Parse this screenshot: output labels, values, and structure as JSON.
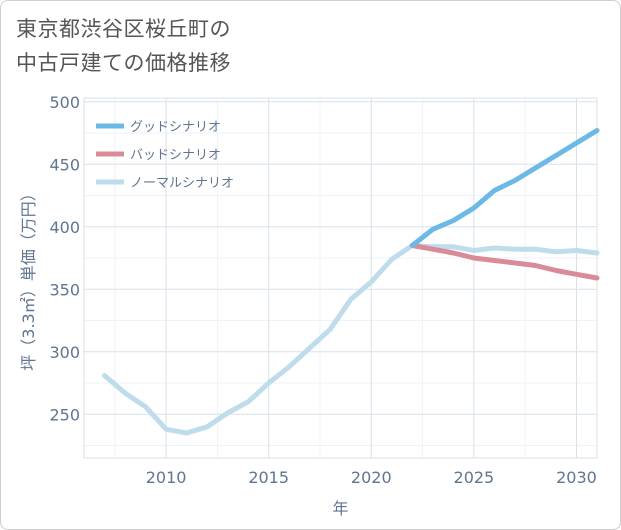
{
  "title": {
    "line1": "東京都渋谷区桜丘町の",
    "line2": "中古戸建ての価格推移"
  },
  "chart_data": {
    "type": "line",
    "xlabel": "年",
    "ylabel": "坪（3.3㎡）単価（万円）",
    "xlim": [
      2006,
      2031
    ],
    "ylim": [
      215,
      503
    ],
    "x_ticks": [
      "2010",
      "2015",
      "2020",
      "2025",
      "2030"
    ],
    "y_ticks": [
      "250",
      "300",
      "350",
      "400",
      "450",
      "500"
    ],
    "legend_position": "top-left",
    "series": [
      {
        "name": "グッドシナリオ",
        "color": "#6cb8e6",
        "x": [
          2022,
          2023,
          2024,
          2025,
          2026,
          2027,
          2028,
          2029,
          2030,
          2031
        ],
        "values": [
          385,
          398,
          405,
          415,
          429,
          437,
          447,
          457,
          467,
          477
        ]
      },
      {
        "name": "バッドシナリオ",
        "color": "#d98c97",
        "x": [
          2022,
          2023,
          2024,
          2025,
          2026,
          2027,
          2028,
          2029,
          2030,
          2031
        ],
        "values": [
          385,
          382,
          379,
          375,
          373,
          371,
          369,
          365,
          362,
          359
        ]
      },
      {
        "name": "ノーマルシナリオ",
        "color": "#bfdcec",
        "x": [
          2007,
          2008,
          2009,
          2010,
          2011,
          2012,
          2013,
          2014,
          2015,
          2016,
          2017,
          2018,
          2019,
          2020,
          2021,
          2022,
          2023,
          2024,
          2025,
          2026,
          2027,
          2028,
          2029,
          2030,
          2031
        ],
        "values": [
          281,
          267,
          256,
          238,
          235,
          240,
          251,
          260,
          275,
          288,
          303,
          318,
          342,
          356,
          374,
          385,
          384,
          384,
          381,
          383,
          382,
          382,
          380,
          381,
          379
        ]
      }
    ]
  }
}
